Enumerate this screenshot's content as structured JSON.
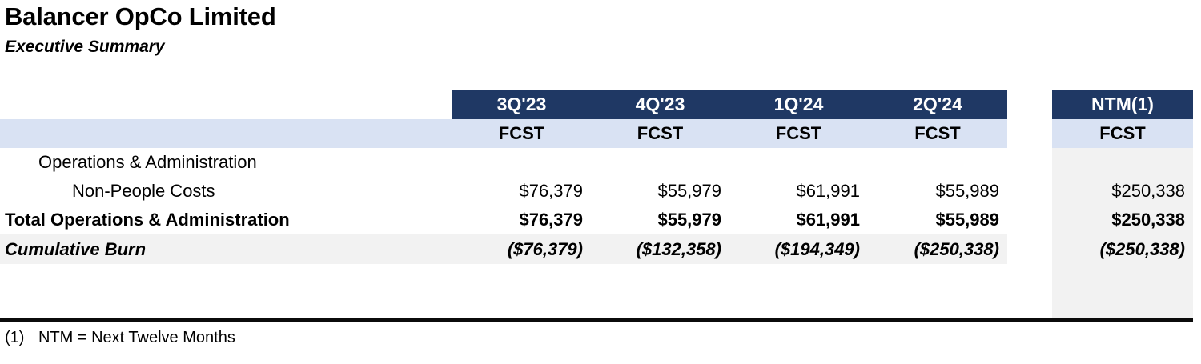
{
  "header": {
    "title": "Balancer OpCo Limited",
    "subtitle": "Executive Summary"
  },
  "table": {
    "quarter_columns": [
      "3Q'23",
      "4Q'23",
      "1Q'24",
      "2Q'24"
    ],
    "ntm_column": "NTM(1)",
    "subheader_label": "FCST",
    "rows": [
      {
        "label": "Operations & Administration",
        "values": [
          "",
          "",
          "",
          ""
        ],
        "ntm": ""
      },
      {
        "label": "Non-People Costs",
        "values": [
          "$76,379",
          "$55,979",
          "$61,991",
          "$55,989"
        ],
        "ntm": "$250,338"
      },
      {
        "label": "Total Operations & Administration",
        "values": [
          "$76,379",
          "$55,979",
          "$61,991",
          "$55,989"
        ],
        "ntm": "$250,338"
      },
      {
        "label": "Cumulative Burn",
        "values": [
          "($76,379)",
          "($132,358)",
          "($194,349)",
          "($250,338)"
        ],
        "ntm": "($250,338)"
      }
    ]
  },
  "footnote": {
    "marker": "(1)",
    "text": "NTM = Next Twelve Months"
  },
  "colors": {
    "header_bg": "#1F3864",
    "header_text": "#FFFFFF",
    "subheader_bg": "#D9E2F3",
    "highlight_row_bg": "#F2F2F2",
    "ntm_column_bg": "#F2F2F2",
    "divider": "#0B0B0B",
    "text": "#000000",
    "background": "#FFFFFF"
  }
}
